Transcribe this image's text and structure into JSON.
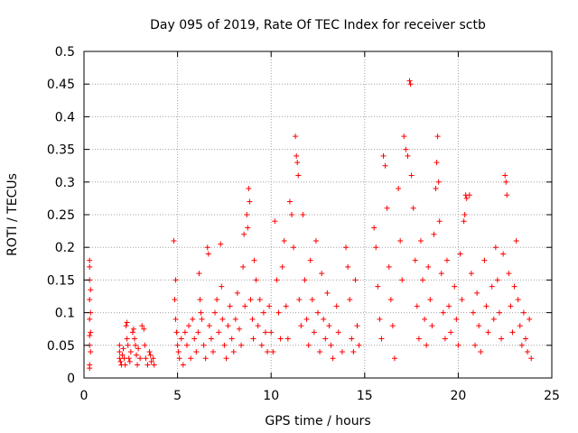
{
  "chart_data": {
    "type": "scatter",
    "title": "Day 095 of 2019, Rate Of TEC Index for receiver sctb",
    "xlabel": "GPS time / hours",
    "ylabel": "ROTI / TECUs",
    "xlim": [
      0,
      25
    ],
    "ylim": [
      0,
      0.5
    ],
    "x_ticks": [
      0,
      5,
      10,
      15,
      20,
      25
    ],
    "x_tick_labels": [
      "0",
      "5",
      "10",
      "15",
      "20",
      "25"
    ],
    "y_ticks": [
      0,
      0.05,
      0.1,
      0.15,
      0.2,
      0.25,
      0.3,
      0.35,
      0.4,
      0.45,
      0.5
    ],
    "y_tick_labels": [
      "0",
      "0.05",
      "0.1",
      "0.15",
      "0.2",
      "0.25",
      "0.3",
      "0.35",
      "0.4",
      "0.45",
      "0.5"
    ],
    "grid": true,
    "marker": "+",
    "series": [
      {
        "name": "ROTI",
        "color": "#ff0000",
        "points": [
          [
            0.3,
            0.18
          ],
          [
            0.3,
            0.17
          ],
          [
            0.3,
            0.15
          ],
          [
            0.35,
            0.135
          ],
          [
            0.3,
            0.12
          ],
          [
            0.35,
            0.1
          ],
          [
            0.3,
            0.09
          ],
          [
            0.35,
            0.07
          ],
          [
            0.3,
            0.065
          ],
          [
            0.3,
            0.05
          ],
          [
            0.35,
            0.04
          ],
          [
            0.3,
            0.02
          ],
          [
            0.3,
            0.015
          ],
          [
            1.9,
            0.05
          ],
          [
            1.9,
            0.04
          ],
          [
            1.9,
            0.03
          ],
          [
            1.95,
            0.025
          ],
          [
            2.0,
            0.02
          ],
          [
            2.05,
            0.035
          ],
          [
            2.1,
            0.045
          ],
          [
            2.15,
            0.03
          ],
          [
            2.2,
            0.02
          ],
          [
            2.25,
            0.08
          ],
          [
            2.3,
            0.085
          ],
          [
            2.3,
            0.06
          ],
          [
            2.35,
            0.05
          ],
          [
            2.4,
            0.03
          ],
          [
            2.45,
            0.025
          ],
          [
            2.5,
            0.04
          ],
          [
            2.6,
            0.07
          ],
          [
            2.65,
            0.075
          ],
          [
            2.7,
            0.06
          ],
          [
            2.75,
            0.05
          ],
          [
            2.8,
            0.035
          ],
          [
            2.85,
            0.02
          ],
          [
            2.9,
            0.045
          ],
          [
            3.0,
            0.03
          ],
          [
            3.1,
            0.08
          ],
          [
            3.2,
            0.075
          ],
          [
            3.25,
            0.05
          ],
          [
            3.3,
            0.03
          ],
          [
            3.4,
            0.02
          ],
          [
            3.5,
            0.04
          ],
          [
            3.55,
            0.035
          ],
          [
            3.6,
            0.025
          ],
          [
            3.7,
            0.03
          ],
          [
            3.75,
            0.02
          ],
          [
            4.8,
            0.21
          ],
          [
            4.9,
            0.15
          ],
          [
            4.85,
            0.12
          ],
          [
            4.9,
            0.09
          ],
          [
            4.95,
            0.07
          ],
          [
            5.0,
            0.05
          ],
          [
            5.05,
            0.04
          ],
          [
            5.1,
            0.03
          ],
          [
            5.2,
            0.06
          ],
          [
            5.3,
            0.02
          ],
          [
            5.4,
            0.07
          ],
          [
            5.5,
            0.05
          ],
          [
            5.6,
            0.08
          ],
          [
            5.7,
            0.03
          ],
          [
            5.8,
            0.09
          ],
          [
            5.9,
            0.06
          ],
          [
            6.0,
            0.04
          ],
          [
            6.1,
            0.07
          ],
          [
            6.15,
            0.16
          ],
          [
            6.2,
            0.12
          ],
          [
            6.25,
            0.1
          ],
          [
            6.3,
            0.09
          ],
          [
            6.4,
            0.05
          ],
          [
            6.5,
            0.03
          ],
          [
            6.6,
            0.2
          ],
          [
            6.65,
            0.19
          ],
          [
            6.7,
            0.08
          ],
          [
            6.8,
            0.06
          ],
          [
            6.9,
            0.04
          ],
          [
            7.0,
            0.1
          ],
          [
            7.1,
            0.12
          ],
          [
            7.2,
            0.07
          ],
          [
            7.3,
            0.205
          ],
          [
            7.35,
            0.14
          ],
          [
            7.4,
            0.09
          ],
          [
            7.5,
            0.05
          ],
          [
            7.6,
            0.03
          ],
          [
            7.7,
            0.08
          ],
          [
            7.8,
            0.11
          ],
          [
            7.9,
            0.06
          ],
          [
            8.0,
            0.04
          ],
          [
            8.1,
            0.09
          ],
          [
            8.2,
            0.13
          ],
          [
            8.3,
            0.075
          ],
          [
            8.4,
            0.05
          ],
          [
            8.5,
            0.17
          ],
          [
            8.55,
            0.22
          ],
          [
            8.6,
            0.11
          ],
          [
            8.7,
            0.25
          ],
          [
            8.75,
            0.23
          ],
          [
            8.8,
            0.29
          ],
          [
            8.85,
            0.27
          ],
          [
            8.9,
            0.12
          ],
          [
            9.0,
            0.09
          ],
          [
            9.05,
            0.06
          ],
          [
            9.1,
            0.18
          ],
          [
            9.2,
            0.15
          ],
          [
            9.3,
            0.08
          ],
          [
            9.4,
            0.12
          ],
          [
            9.5,
            0.05
          ],
          [
            9.6,
            0.1
          ],
          [
            9.7,
            0.07
          ],
          [
            9.8,
            0.04
          ],
          [
            9.9,
            0.11
          ],
          [
            10.0,
            0.07
          ],
          [
            10.1,
            0.04
          ],
          [
            10.2,
            0.24
          ],
          [
            10.3,
            0.15
          ],
          [
            10.4,
            0.1
          ],
          [
            10.5,
            0.06
          ],
          [
            10.6,
            0.17
          ],
          [
            10.7,
            0.21
          ],
          [
            10.8,
            0.11
          ],
          [
            10.9,
            0.06
          ],
          [
            11.0,
            0.27
          ],
          [
            11.1,
            0.25
          ],
          [
            11.2,
            0.2
          ],
          [
            11.3,
            0.37
          ],
          [
            11.35,
            0.34
          ],
          [
            11.4,
            0.33
          ],
          [
            11.45,
            0.31
          ],
          [
            11.5,
            0.12
          ],
          [
            11.6,
            0.08
          ],
          [
            11.7,
            0.25
          ],
          [
            11.8,
            0.15
          ],
          [
            11.9,
            0.09
          ],
          [
            12.0,
            0.05
          ],
          [
            12.1,
            0.18
          ],
          [
            12.2,
            0.12
          ],
          [
            12.3,
            0.07
          ],
          [
            12.4,
            0.21
          ],
          [
            12.5,
            0.1
          ],
          [
            12.6,
            0.04
          ],
          [
            12.7,
            0.16
          ],
          [
            12.8,
            0.09
          ],
          [
            12.9,
            0.06
          ],
          [
            13.0,
            0.13
          ],
          [
            13.1,
            0.08
          ],
          [
            13.2,
            0.05
          ],
          [
            13.3,
            0.03
          ],
          [
            13.5,
            0.11
          ],
          [
            13.6,
            0.07
          ],
          [
            13.8,
            0.04
          ],
          [
            14.0,
            0.2
          ],
          [
            14.1,
            0.17
          ],
          [
            14.2,
            0.12
          ],
          [
            14.3,
            0.06
          ],
          [
            14.4,
            0.04
          ],
          [
            14.5,
            0.15
          ],
          [
            14.6,
            0.08
          ],
          [
            14.7,
            0.05
          ],
          [
            15.5,
            0.23
          ],
          [
            15.6,
            0.2
          ],
          [
            15.7,
            0.14
          ],
          [
            15.8,
            0.09
          ],
          [
            15.9,
            0.06
          ],
          [
            16.0,
            0.34
          ],
          [
            16.1,
            0.325
          ],
          [
            16.2,
            0.26
          ],
          [
            16.3,
            0.17
          ],
          [
            16.4,
            0.12
          ],
          [
            16.5,
            0.08
          ],
          [
            16.6,
            0.03
          ],
          [
            16.8,
            0.29
          ],
          [
            16.9,
            0.21
          ],
          [
            17.0,
            0.15
          ],
          [
            17.1,
            0.37
          ],
          [
            17.2,
            0.35
          ],
          [
            17.3,
            0.34
          ],
          [
            17.4,
            0.455
          ],
          [
            17.45,
            0.45
          ],
          [
            17.5,
            0.31
          ],
          [
            17.6,
            0.26
          ],
          [
            17.7,
            0.18
          ],
          [
            17.8,
            0.11
          ],
          [
            17.9,
            0.06
          ],
          [
            18.0,
            0.21
          ],
          [
            18.1,
            0.15
          ],
          [
            18.2,
            0.09
          ],
          [
            18.3,
            0.05
          ],
          [
            18.4,
            0.17
          ],
          [
            18.5,
            0.12
          ],
          [
            18.6,
            0.08
          ],
          [
            18.7,
            0.22
          ],
          [
            18.8,
            0.29
          ],
          [
            18.85,
            0.33
          ],
          [
            18.9,
            0.37
          ],
          [
            18.95,
            0.3
          ],
          [
            19.0,
            0.24
          ],
          [
            19.1,
            0.16
          ],
          [
            19.2,
            0.1
          ],
          [
            19.3,
            0.06
          ],
          [
            19.4,
            0.18
          ],
          [
            19.5,
            0.11
          ],
          [
            19.6,
            0.07
          ],
          [
            19.8,
            0.14
          ],
          [
            19.9,
            0.09
          ],
          [
            20.0,
            0.05
          ],
          [
            20.1,
            0.19
          ],
          [
            20.2,
            0.12
          ],
          [
            20.3,
            0.24
          ],
          [
            20.35,
            0.25
          ],
          [
            20.4,
            0.28
          ],
          [
            20.45,
            0.275
          ],
          [
            20.6,
            0.28
          ],
          [
            20.7,
            0.16
          ],
          [
            20.8,
            0.1
          ],
          [
            20.9,
            0.05
          ],
          [
            21.0,
            0.13
          ],
          [
            21.1,
            0.08
          ],
          [
            21.2,
            0.04
          ],
          [
            21.4,
            0.18
          ],
          [
            21.5,
            0.11
          ],
          [
            21.6,
            0.07
          ],
          [
            21.8,
            0.14
          ],
          [
            21.9,
            0.09
          ],
          [
            22.0,
            0.2
          ],
          [
            22.1,
            0.15
          ],
          [
            22.2,
            0.1
          ],
          [
            22.3,
            0.06
          ],
          [
            22.4,
            0.19
          ],
          [
            22.5,
            0.31
          ],
          [
            22.55,
            0.3
          ],
          [
            22.6,
            0.28
          ],
          [
            22.7,
            0.16
          ],
          [
            22.8,
            0.11
          ],
          [
            22.9,
            0.07
          ],
          [
            23.0,
            0.14
          ],
          [
            23.1,
            0.21
          ],
          [
            23.2,
            0.12
          ],
          [
            23.3,
            0.08
          ],
          [
            23.4,
            0.05
          ],
          [
            23.5,
            0.1
          ],
          [
            23.6,
            0.06
          ],
          [
            23.7,
            0.04
          ],
          [
            23.8,
            0.09
          ],
          [
            23.9,
            0.03
          ]
        ]
      }
    ]
  }
}
